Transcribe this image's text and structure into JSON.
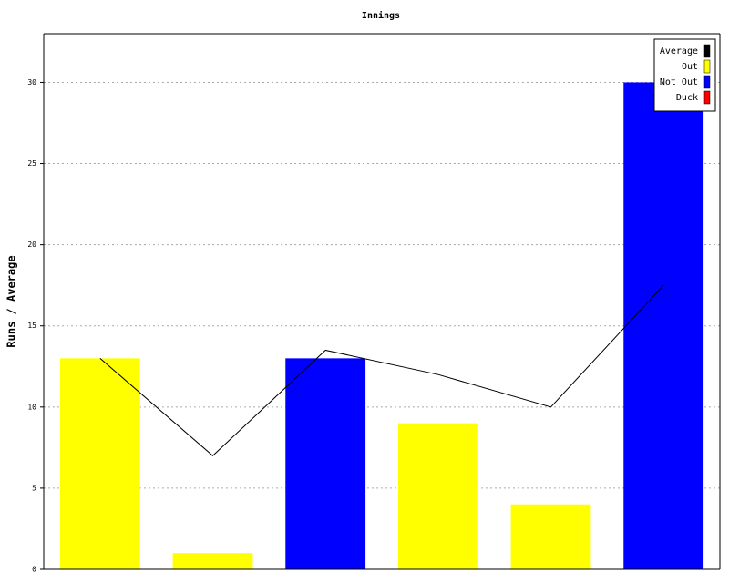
{
  "chart_data": {
    "type": "bar",
    "title": "Innings",
    "y_label": "Runs / Average",
    "categories": [
      null,
      null,
      null,
      null,
      null,
      null
    ],
    "series": [
      {
        "name": "Average",
        "color": "#000000",
        "type": "line",
        "values": [
          13,
          7,
          13.5,
          12,
          10,
          17.5
        ]
      },
      {
        "name": "Out",
        "color": "#ffff00",
        "values": [
          13,
          1,
          null,
          9,
          4,
          null
        ]
      },
      {
        "name": "Not Out",
        "color": "#0000ff",
        "values": [
          null,
          null,
          13,
          null,
          null,
          30
        ]
      },
      {
        "name": "Duck",
        "color": "#ff0000",
        "values": [
          null,
          null,
          null,
          null,
          null,
          null
        ]
      }
    ],
    "ylim": [
      0,
      33
    ],
    "yticks": [
      0,
      5,
      10,
      15,
      20,
      25,
      30
    ],
    "grid": true,
    "legend": "top-right"
  }
}
